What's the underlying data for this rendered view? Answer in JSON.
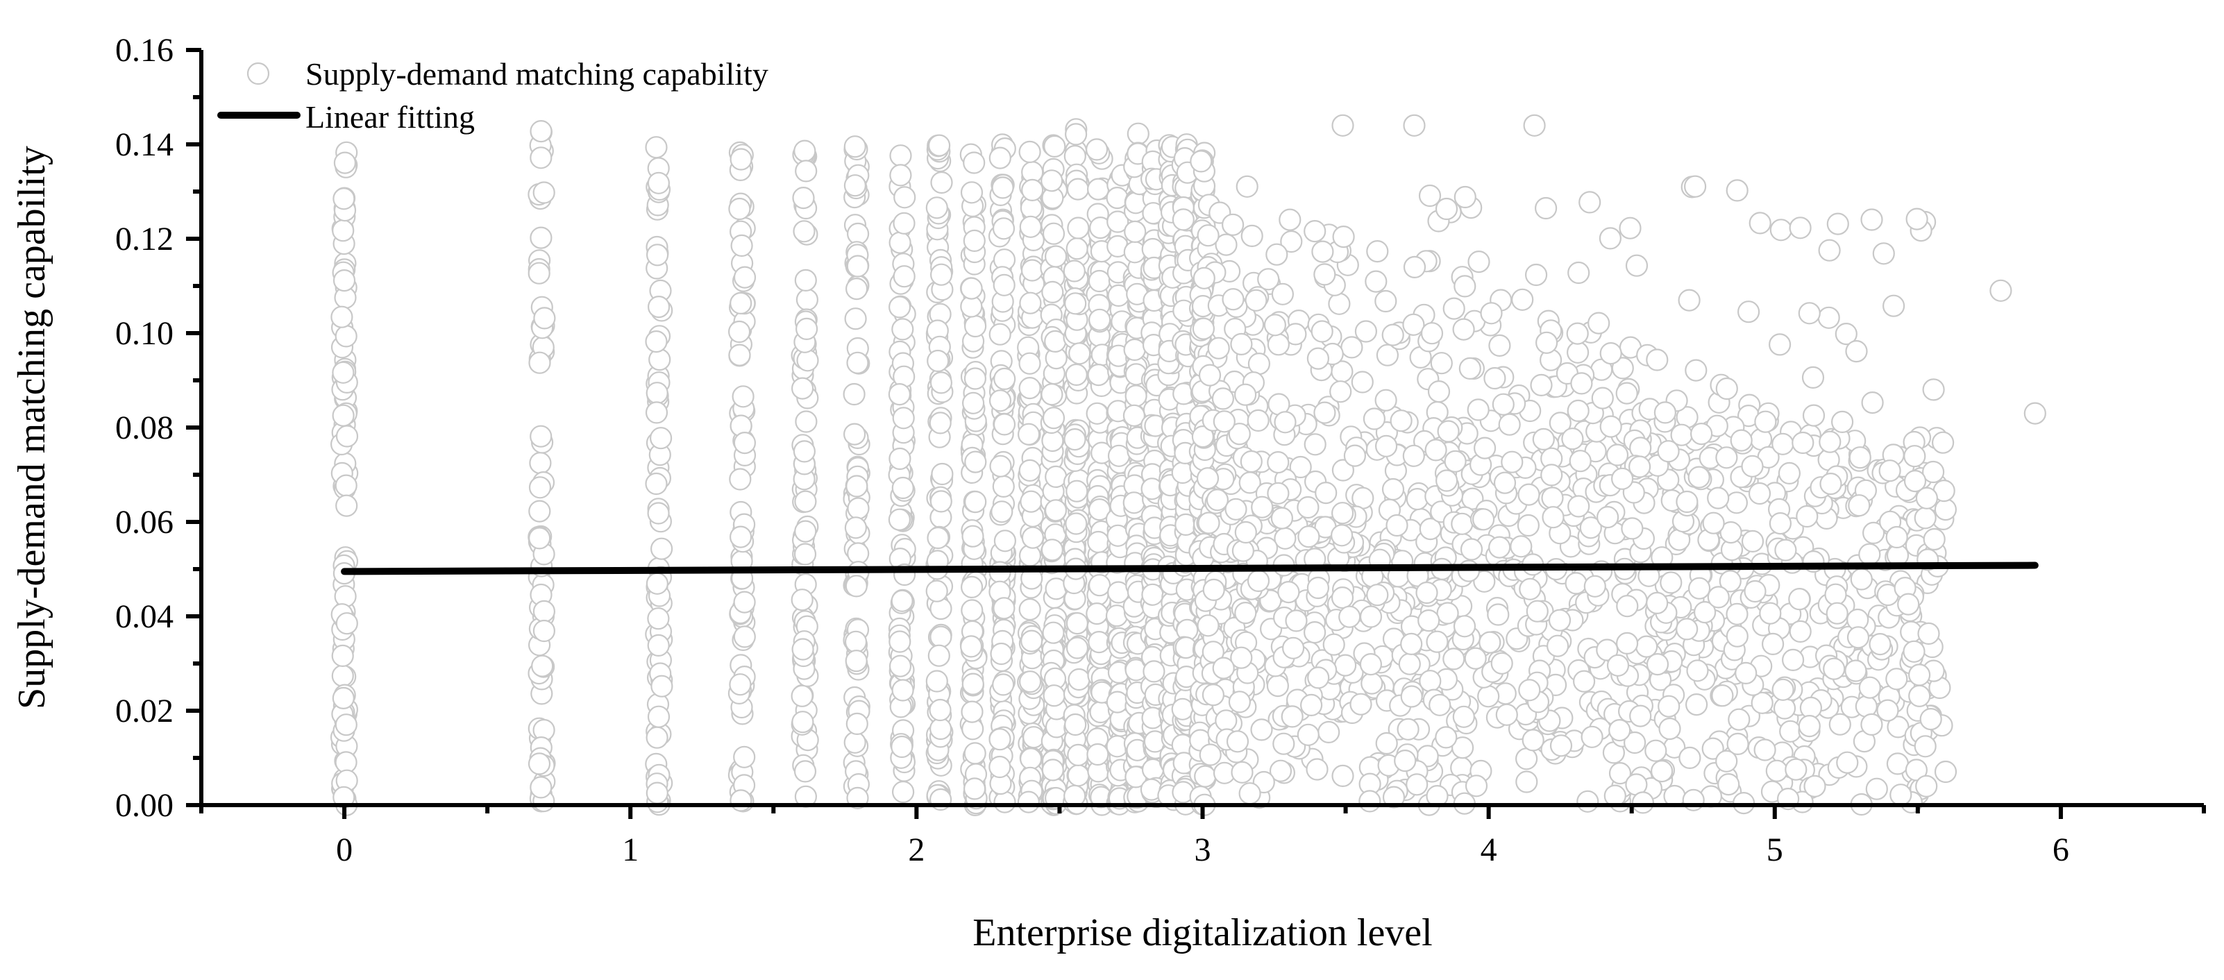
{
  "chart_data": {
    "type": "scatter",
    "xlabel": "Enterprise digitalization level",
    "ylabel": "Supply-demand matching capability",
    "xlim": [
      -0.5,
      6.5
    ],
    "ylim": [
      0,
      0.16
    ],
    "x_ticks": [
      0,
      1,
      2,
      3,
      4,
      5,
      6
    ],
    "x_tick_labels": [
      "0",
      "1",
      "2",
      "3",
      "4",
      "5",
      "6"
    ],
    "y_ticks": [
      0,
      0.02,
      0.04,
      0.06,
      0.08,
      0.1,
      0.12,
      0.14,
      0.16
    ],
    "y_tick_labels": [
      "0.00",
      "0.02",
      "0.04",
      "0.06",
      "0.08",
      "0.10",
      "0.12",
      "0.14",
      "0.16"
    ],
    "legend_position": "top-left",
    "grid": false,
    "series": [
      {
        "name": "Supply-demand matching capability",
        "kind": "scatter",
        "marker": "open-circle",
        "color": "#c8c8c8",
        "discrete_x_values": [
          0,
          0.69,
          1.1,
          1.39,
          1.61,
          1.79,
          1.95,
          2.08,
          2.2,
          2.3,
          2.4,
          2.48,
          2.56,
          2.64,
          2.71,
          2.77,
          2.83,
          2.89,
          2.94,
          3.0
        ],
        "continuous_x_range": [
          3.0,
          5.6
        ],
        "y_range": [
          0,
          0.144
        ],
        "outliers": [
          [
            5.79,
            0.109
          ],
          [
            5.91,
            0.083
          ],
          [
            5.53,
            0.004
          ],
          [
            5.14,
            0.004
          ],
          [
            4.16,
            0.144
          ],
          [
            3.74,
            0.144
          ],
          [
            3.49,
            0.144
          ]
        ]
      },
      {
        "name": "Linear fitting",
        "kind": "line",
        "color": "#000000",
        "x": [
          0,
          5.91
        ],
        "y": [
          0.0495,
          0.0508
        ]
      }
    ]
  }
}
